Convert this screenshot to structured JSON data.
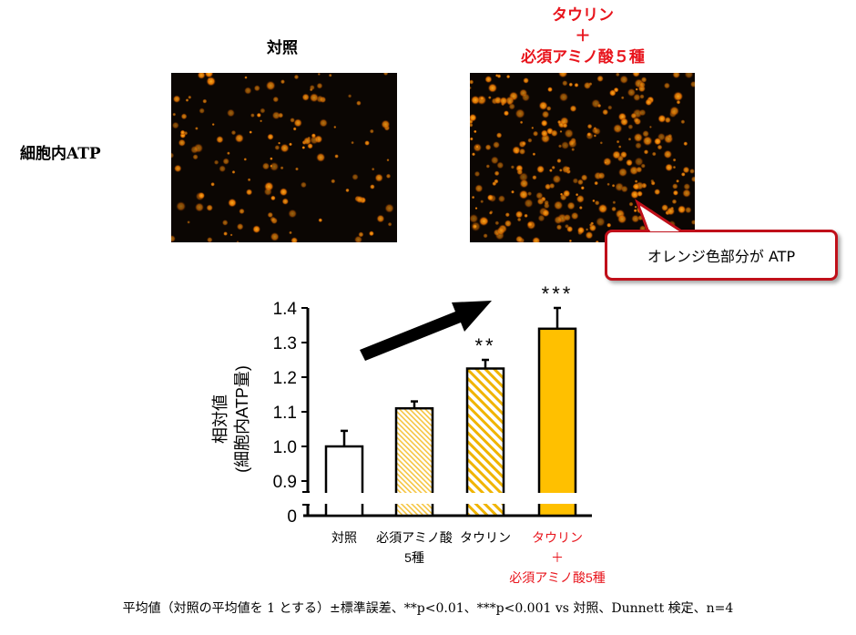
{
  "images": {
    "row_label": "細胞内ATP",
    "control_title": "対照",
    "treated_title_lines": [
      "タウリン",
      "＋",
      "必須アミノ酸５種"
    ],
    "callout": "オレンジ色部分が ATP"
  },
  "colors": {
    "accent_red": "#e8141c",
    "bar_yellow": "#ffc000",
    "fluorescence": "#ff9a10"
  },
  "chart_data": {
    "type": "bar",
    "ylabel_lines": [
      "相対値",
      "(細胞内ATP量)"
    ],
    "categories": [
      {
        "lines": [
          "対照"
        ],
        "red": false
      },
      {
        "lines": [
          "必須アミノ酸",
          "5種"
        ],
        "red": false
      },
      {
        "lines": [
          "タウリン"
        ],
        "red": false
      },
      {
        "lines": [
          "タウリン",
          "＋",
          "必須アミノ酸5種"
        ],
        "red": true
      }
    ],
    "values": [
      1.0,
      1.11,
      1.225,
      1.34
    ],
    "errors": [
      0.045,
      0.02,
      0.025,
      0.06
    ],
    "fills": [
      "white",
      "light-hatch",
      "hatch",
      "solid"
    ],
    "significance": [
      "",
      "",
      "**",
      "***"
    ],
    "yticks": [
      "0",
      "0.9",
      "1.0",
      "1.1",
      "1.2",
      "1.3",
      "1.4"
    ],
    "ylim": [
      0.9,
      1.4
    ],
    "axis_break": true,
    "trend_arrow": true
  },
  "footnote": "平均値（対照の平均値を 1 とする）±標準誤差、**p<0.01、***p<0.001 vs 対照、Dunnett 検定、n=4"
}
